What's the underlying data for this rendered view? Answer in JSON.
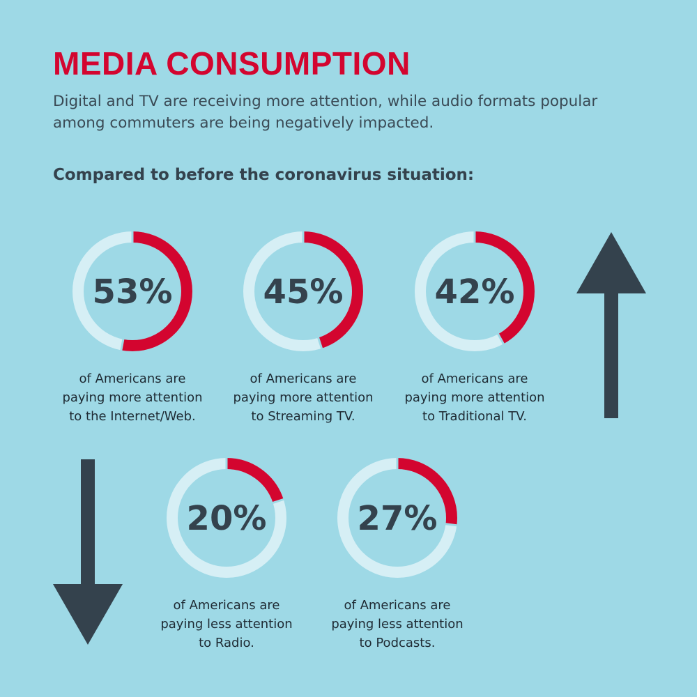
{
  "title": "MEDIA CONSUMPTION",
  "subtitle": "Digital and TV are receiving more attention, while audio formats popular among commuters are being negatively impacted.",
  "section_heading": "Compared to before the coronavirus situation:",
  "colors": {
    "background": "#9ed9e6",
    "accent": "#d3052f",
    "track": "#d6eff5",
    "dark": "#34424d"
  },
  "chart_data": [
    {
      "type": "pie",
      "label": "53%",
      "value": 53,
      "caption": [
        "of Americans are",
        "paying more attention",
        "to the Internet/Web."
      ]
    },
    {
      "type": "pie",
      "label": "45%",
      "value": 45,
      "caption": [
        "of Americans are",
        "paying more attention",
        "to Streaming TV."
      ]
    },
    {
      "type": "pie",
      "label": "42%",
      "value": 42,
      "caption": [
        "of Americans are",
        "paying more attention",
        "to Traditional TV."
      ]
    },
    {
      "type": "pie",
      "label": "20%",
      "value": 20,
      "caption": [
        "of Americans are",
        "paying less attention",
        "to Radio."
      ]
    },
    {
      "type": "pie",
      "label": "27%",
      "value": 27,
      "caption": [
        "of Americans are",
        "paying less attention",
        "to Podcasts."
      ]
    }
  ],
  "icons": {
    "up": "arrow-up-icon",
    "down": "arrow-down-icon"
  }
}
